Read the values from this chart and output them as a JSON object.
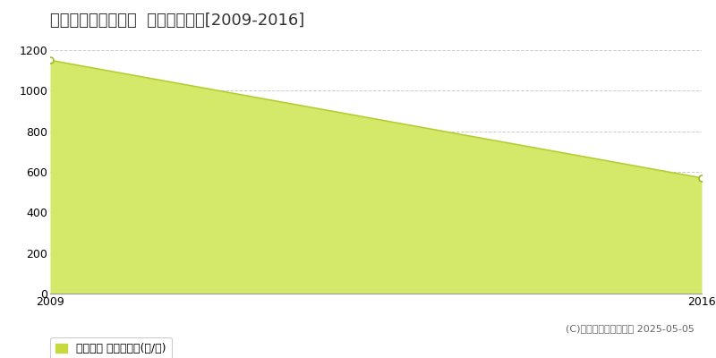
{
  "title": "いわき市三和町差塩  林地価格推移[2009-2016]",
  "years": [
    2009,
    2016
  ],
  "values": [
    1150,
    570
  ],
  "y_min": 0,
  "y_max": 1200,
  "y_ticks": [
    0,
    200,
    400,
    600,
    800,
    1000,
    1200
  ],
  "x_ticks": [
    2009,
    2016
  ],
  "line_color": "#b8cc30",
  "fill_color": "#d4e86a",
  "fill_alpha": 1.0,
  "marker_color": "#ffffff",
  "marker_edge_color": "#a0b828",
  "grid_color": "#cccccc",
  "background_color": "#ffffff",
  "plot_bg_color": "#ffffff",
  "legend_label": "林地価格 平均坪単価(円/坪)",
  "legend_marker_color": "#c8d940",
  "copyright_text": "(C)土地価格ドットコム 2025-05-05",
  "title_fontsize": 13,
  "axis_fontsize": 9,
  "legend_fontsize": 9,
  "copyright_fontsize": 8
}
